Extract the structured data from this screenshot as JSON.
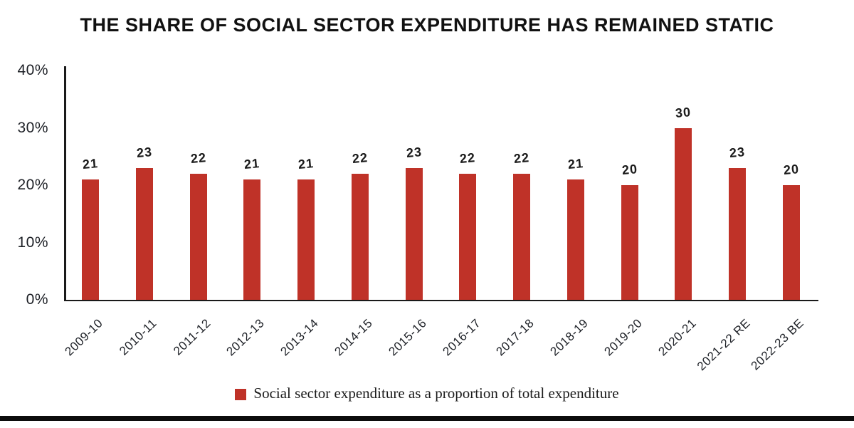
{
  "title": "THE SHARE OF SOCIAL SECTOR EXPENDITURE HAS REMAINED STATIC",
  "legend": {
    "label": "Social sector expenditure as a proportion of total expenditure",
    "swatch_color": "#bf3228"
  },
  "colors": {
    "bar": "#bf3228",
    "axis": "#1a1a1a",
    "label_text": "#1d2026",
    "title_text": "#111111",
    "bottom_rule": "#0c0c0c"
  },
  "chart_data": {
    "type": "bar",
    "title": "THE SHARE OF SOCIAL SECTOR EXPENDITURE HAS REMAINED STATIC",
    "categories": [
      "2009-10",
      "2010-11",
      "2011-12",
      "2012-13",
      "2013-14",
      "2014-15",
      "2015-16",
      "2016-17",
      "2017-18",
      "2018-19",
      "2019-20",
      "2020-21",
      "2021-22 RE",
      "2022-23 BE"
    ],
    "values": [
      21,
      23,
      22,
      21,
      21,
      22,
      23,
      22,
      22,
      21,
      20,
      30,
      23,
      20
    ],
    "value_labels": [
      "21",
      "23",
      "22",
      "21",
      "21",
      "22",
      "23",
      "22",
      "22",
      "21",
      "20",
      "30",
      "23",
      "20"
    ],
    "series_name": "Social sector expenditure as a proportion of total expenditure",
    "xlabel": "",
    "ylabel": "",
    "ylim": [
      0,
      40
    ],
    "ytick_values": [
      0,
      10,
      20,
      30,
      40
    ],
    "ytick_labels": [
      "0%",
      "10%",
      "20%",
      "30%",
      "40%"
    ],
    "grid": false,
    "legend_position": "bottom",
    "bar_color": "#bf3228",
    "x_tick_rotation_deg": 44
  }
}
